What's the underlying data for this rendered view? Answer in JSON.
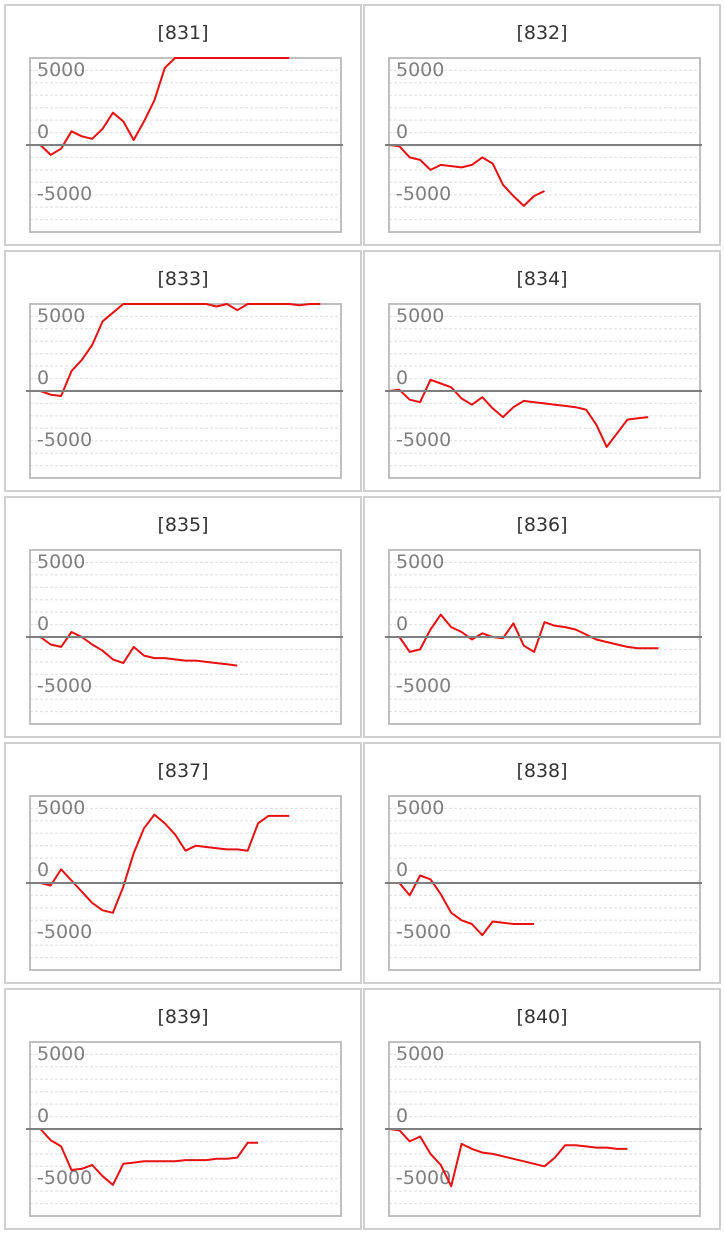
{
  "colors": {
    "line": "#e81010",
    "zero_line": "#7f7f7f",
    "frame": "#c0c0c0",
    "grid": "#dedede",
    "tick_label": "#7f7f7f",
    "panel_border": "#cfcfcf"
  },
  "chart_data": [
    {
      "type": "line",
      "title": "[831]",
      "ylim": [
        -7000,
        7000
      ],
      "xlim": [
        0,
        30
      ],
      "y_ticks": [
        5000,
        0,
        -5000
      ],
      "y_tick_labels": [
        "5000",
        "0",
        "-5000"
      ],
      "grid": true,
      "legend": "none",
      "x": [
        0,
        1,
        2,
        3,
        4,
        5,
        6,
        7,
        8,
        9,
        10,
        11,
        12,
        13,
        14,
        15,
        16,
        17,
        18,
        19,
        20,
        21,
        22,
        23,
        24,
        25
      ],
      "values": [
        0,
        0,
        -800,
        -300,
        1100,
        700,
        500,
        1300,
        2600,
        1900,
        400,
        1900,
        3600,
        6200,
        8600,
        8400,
        8400,
        8400,
        8300,
        8200,
        8400,
        7700,
        9200,
        9200,
        9200,
        9200
      ]
    },
    {
      "type": "line",
      "title": "[832]",
      "ylim": [
        -7000,
        7000
      ],
      "xlim": [
        0,
        30
      ],
      "y_ticks": [
        5000,
        0,
        -5000
      ],
      "y_tick_labels": [
        "5000",
        "0",
        "-5000"
      ],
      "grid": true,
      "legend": "none",
      "x": [
        0,
        1,
        2,
        3,
        4,
        5,
        6,
        7,
        8,
        9,
        10,
        11,
        12,
        13,
        14,
        15
      ],
      "values": [
        0,
        -100,
        -1000,
        -1200,
        -2000,
        -1600,
        -1700,
        -1800,
        -1600,
        -1000,
        -1500,
        -3200,
        -4100,
        -4900,
        -4100,
        -3700
      ]
    },
    {
      "type": "line",
      "title": "[833]",
      "ylim": [
        -7000,
        7000
      ],
      "xlim": [
        0,
        30
      ],
      "y_ticks": [
        5000,
        0,
        -5000
      ],
      "y_tick_labels": [
        "5000",
        "0",
        "-5000"
      ],
      "grid": true,
      "legend": "none",
      "x": [
        0,
        1,
        2,
        3,
        4,
        5,
        6,
        7,
        8,
        9,
        10,
        11,
        12,
        13,
        14,
        15,
        16,
        17,
        18,
        19,
        20,
        21,
        22,
        23,
        24,
        25,
        26,
        27,
        28
      ],
      "values": [
        0,
        0,
        -300,
        -400,
        1600,
        2500,
        3700,
        5600,
        6300,
        7800,
        8800,
        8900,
        7900,
        7200,
        8500,
        7500,
        8400,
        7200,
        6800,
        7100,
        6500,
        7600,
        7200,
        7900,
        8100,
        7800,
        6900,
        7200,
        7200
      ]
    },
    {
      "type": "line",
      "title": "[834]",
      "ylim": [
        -7000,
        7000
      ],
      "xlim": [
        0,
        30
      ],
      "y_ticks": [
        5000,
        0,
        -5000
      ],
      "y_tick_labels": [
        "5000",
        "0",
        "-5000"
      ],
      "grid": true,
      "legend": "none",
      "x": [
        0,
        1,
        2,
        3,
        4,
        5,
        6,
        7,
        8,
        9,
        10,
        11,
        12,
        13,
        14,
        15,
        16,
        17,
        18,
        19,
        20,
        21,
        22,
        23,
        24,
        25
      ],
      "values": [
        0,
        100,
        -700,
        -900,
        900,
        600,
        300,
        -600,
        -1100,
        -500,
        -1400,
        -2100,
        -1300,
        -800,
        -900,
        -1000,
        -1100,
        -1200,
        -1300,
        -1500,
        -2700,
        -4500,
        -3400,
        -2300,
        -2200,
        -2100
      ]
    },
    {
      "type": "line",
      "title": "[835]",
      "ylim": [
        -7000,
        7000
      ],
      "xlim": [
        0,
        30
      ],
      "y_ticks": [
        5000,
        0,
        -5000
      ],
      "y_tick_labels": [
        "5000",
        "0",
        "-5000"
      ],
      "grid": true,
      "legend": "none",
      "x": [
        0,
        1,
        2,
        3,
        4,
        5,
        6,
        7,
        8,
        9,
        10,
        11,
        12,
        13,
        14,
        15,
        16,
        17,
        18,
        19,
        20
      ],
      "values": [
        0,
        0,
        -600,
        -800,
        400,
        0,
        -600,
        -1100,
        -1800,
        -2100,
        -800,
        -1500,
        -1700,
        -1700,
        -1800,
        -1900,
        -1900,
        -2000,
        -2100,
        -2200,
        -2300
      ]
    },
    {
      "type": "line",
      "title": "[836]",
      "ylim": [
        -7000,
        7000
      ],
      "xlim": [
        0,
        30
      ],
      "y_ticks": [
        5000,
        0,
        -5000
      ],
      "y_tick_labels": [
        "5000",
        "0",
        "-5000"
      ],
      "grid": true,
      "legend": "none",
      "x": [
        0,
        1,
        2,
        3,
        4,
        5,
        6,
        7,
        8,
        9,
        10,
        11,
        12,
        13,
        14,
        15,
        16,
        17,
        18,
        19,
        20,
        21,
        22,
        23,
        24,
        25,
        26
      ],
      "values": [
        0,
        0,
        -1200,
        -1000,
        600,
        1800,
        800,
        400,
        -200,
        300,
        0,
        -100,
        1100,
        -700,
        -1200,
        1200,
        900,
        800,
        600,
        200,
        -200,
        -400,
        -600,
        -800,
        -900,
        -900,
        -900
      ]
    },
    {
      "type": "line",
      "title": "[837]",
      "ylim": [
        -7000,
        7000
      ],
      "xlim": [
        0,
        30
      ],
      "y_ticks": [
        5000,
        0,
        -5000
      ],
      "y_tick_labels": [
        "5000",
        "0",
        "-5000"
      ],
      "grid": true,
      "legend": "none",
      "x": [
        0,
        1,
        2,
        3,
        4,
        5,
        6,
        7,
        8,
        9,
        10,
        11,
        12,
        13,
        14,
        15,
        16,
        17,
        18,
        19,
        20,
        21,
        22,
        23,
        24,
        25
      ],
      "values": [
        0,
        0,
        -200,
        1100,
        200,
        -700,
        -1600,
        -2200,
        -2400,
        -300,
        2400,
        4400,
        5500,
        4800,
        3900,
        2600,
        3000,
        2900,
        2800,
        2700,
        2700,
        2600,
        4800,
        5400,
        5400,
        5400
      ]
    },
    {
      "type": "line",
      "title": "[838]",
      "ylim": [
        -7000,
        7000
      ],
      "xlim": [
        0,
        30
      ],
      "y_ticks": [
        5000,
        0,
        -5000
      ],
      "y_tick_labels": [
        "5000",
        "0",
        "-5000"
      ],
      "grid": true,
      "legend": "none",
      "x": [
        0,
        1,
        2,
        3,
        4,
        5,
        6,
        7,
        8,
        9,
        10,
        11,
        12,
        13,
        14
      ],
      "values": [
        0,
        0,
        -1000,
        600,
        300,
        -900,
        -2400,
        -3000,
        -3300,
        -4200,
        -3100,
        -3200,
        -3300,
        -3300,
        -3300
      ]
    },
    {
      "type": "line",
      "title": "[839]",
      "ylim": [
        -7000,
        7000
      ],
      "xlim": [
        0,
        30
      ],
      "y_ticks": [
        5000,
        0,
        -5000
      ],
      "y_tick_labels": [
        "5000",
        "0",
        "-5000"
      ],
      "grid": true,
      "legend": "none",
      "x": [
        0,
        1,
        2,
        3,
        4,
        5,
        6,
        7,
        8,
        9,
        10,
        11,
        12,
        13,
        14,
        15,
        16,
        17,
        18,
        19,
        20,
        21,
        22
      ],
      "values": [
        0,
        0,
        -900,
        -1400,
        -3300,
        -3200,
        -2900,
        -3800,
        -4500,
        -2800,
        -2700,
        -2600,
        -2600,
        -2600,
        -2600,
        -2500,
        -2500,
        -2500,
        -2400,
        -2400,
        -2300,
        -1100,
        -1100
      ]
    },
    {
      "type": "line",
      "title": "[840]",
      "ylim": [
        -7000,
        7000
      ],
      "xlim": [
        0,
        30
      ],
      "y_ticks": [
        5000,
        0,
        -5000
      ],
      "y_tick_labels": [
        "5000",
        "0",
        "-5000"
      ],
      "grid": true,
      "legend": "none",
      "x": [
        0,
        1,
        2,
        3,
        4,
        5,
        6,
        7,
        8,
        9,
        10,
        11,
        12,
        13,
        14,
        15,
        16,
        17,
        18,
        19,
        20,
        21,
        22,
        23
      ],
      "values": [
        0,
        -100,
        -1000,
        -600,
        -2000,
        -2900,
        -4600,
        -1200,
        -1600,
        -1900,
        -2000,
        -2200,
        -2400,
        -2600,
        -2800,
        -3000,
        -2300,
        -1300,
        -1300,
        -1400,
        -1500,
        -1500,
        -1600,
        -1600
      ]
    }
  ]
}
